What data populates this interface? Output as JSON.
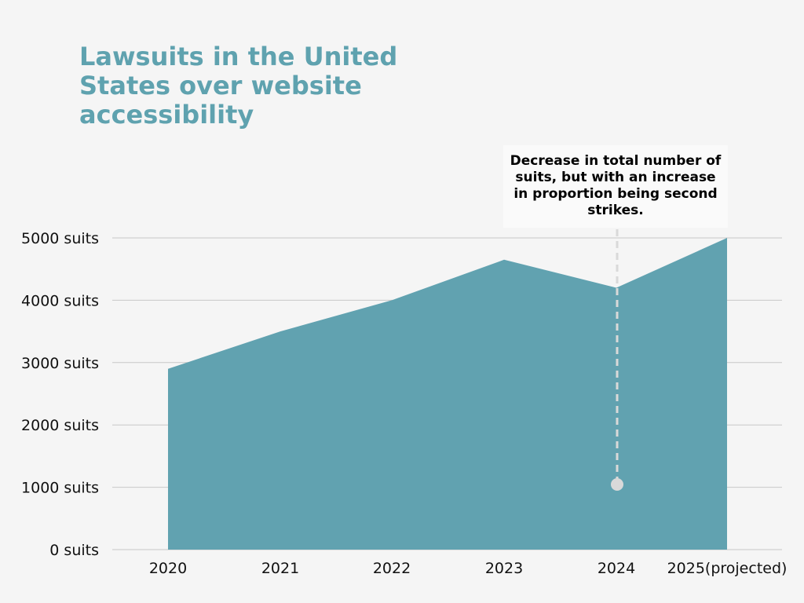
{
  "chart_data": {
    "type": "area",
    "title": "Lawsuits in the United States over website accessibility",
    "categories": [
      "2020",
      "2021",
      "2022",
      "2023",
      "2024",
      "2025(projected)"
    ],
    "series": [
      {
        "values": [
          2900,
          3500,
          4000,
          4650,
          4200,
          5000
        ]
      }
    ],
    "ylim": [
      0,
      5000
    ],
    "yticks": [
      0,
      1000,
      2000,
      3000,
      4000,
      5000
    ],
    "ytick_labels": [
      "0 suits",
      "1000 suits",
      "2000 suits",
      "3000 suits",
      "4000 suits",
      "5000 suits"
    ],
    "grid": true,
    "colors": {
      "area": "#61a2b0",
      "title": "#5fa2af",
      "gridline": "#c8c8c8",
      "annotation_line": "#d9d9d9"
    },
    "annotation": {
      "category": "2024",
      "text": "Decrease in total number of suits, but with an increase in proportion being second strikes."
    }
  }
}
